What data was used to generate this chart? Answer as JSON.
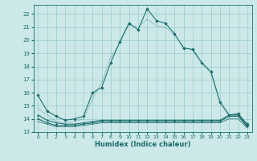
{
  "xlabel": "Humidex (Indice chaleur)",
  "xlim": [
    -0.5,
    23.5
  ],
  "ylim": [
    13,
    22.7
  ],
  "yticks": [
    13,
    14,
    15,
    16,
    17,
    18,
    19,
    20,
    21,
    22
  ],
  "xticks": [
    0,
    1,
    2,
    3,
    4,
    5,
    6,
    7,
    8,
    9,
    10,
    11,
    12,
    13,
    14,
    15,
    16,
    17,
    18,
    19,
    20,
    21,
    22,
    23
  ],
  "bg_color": "#cce8e8",
  "grid_color": "#99cccc",
  "line_color": "#1a6b6b",
  "series_dotted": {
    "x": [
      0,
      1,
      2,
      3,
      4,
      5,
      6,
      7,
      8,
      9,
      10,
      11,
      12,
      13,
      14,
      15,
      16,
      17,
      18,
      19,
      20,
      21,
      22,
      23
    ],
    "y": [
      14.8,
      14.3,
      13.8,
      13.7,
      13.8,
      14.0,
      15.5,
      16.8,
      18.7,
      19.8,
      21.2,
      21.0,
      21.6,
      21.1,
      21.0,
      20.4,
      19.5,
      19.2,
      18.2,
      17.5,
      15.2,
      14.2,
      14.3,
      13.5
    ]
  },
  "series_markers": {
    "x": [
      0,
      1,
      2,
      3,
      4,
      5,
      6,
      7,
      8,
      9,
      10,
      11,
      12,
      13,
      14,
      15,
      16,
      17,
      18,
      19,
      20,
      21,
      22,
      23
    ],
    "y": [
      15.8,
      14.6,
      14.2,
      13.9,
      14.0,
      14.2,
      16.0,
      16.4,
      18.3,
      19.9,
      21.3,
      20.8,
      22.4,
      21.5,
      21.3,
      20.5,
      19.4,
      19.3,
      18.3,
      17.6,
      15.3,
      14.3,
      14.4,
      13.6
    ]
  },
  "series_flat1": {
    "x": [
      0,
      1,
      2,
      3,
      4,
      5,
      6,
      7,
      8,
      9,
      10,
      11,
      12,
      13,
      14,
      15,
      16,
      17,
      18,
      19,
      20,
      21,
      22,
      23
    ],
    "y": [
      14.3,
      13.9,
      13.7,
      13.6,
      13.6,
      13.7,
      13.8,
      13.9,
      13.9,
      13.9,
      13.9,
      13.9,
      13.9,
      13.9,
      13.9,
      13.9,
      13.9,
      13.9,
      13.9,
      13.9,
      13.9,
      14.3,
      14.3,
      13.5
    ]
  },
  "series_flat2": {
    "x": [
      0,
      1,
      2,
      3,
      4,
      5,
      6,
      7,
      8,
      9,
      10,
      11,
      12,
      13,
      14,
      15,
      16,
      17,
      18,
      19,
      20,
      21,
      22,
      23
    ],
    "y": [
      14.0,
      13.7,
      13.5,
      13.5,
      13.5,
      13.6,
      13.7,
      13.8,
      13.8,
      13.8,
      13.8,
      13.8,
      13.8,
      13.8,
      13.8,
      13.8,
      13.8,
      13.8,
      13.8,
      13.8,
      13.8,
      14.2,
      14.2,
      13.4
    ]
  },
  "series_flat3": {
    "x": [
      0,
      1,
      2,
      3,
      4,
      5,
      6,
      7,
      8,
      9,
      10,
      11,
      12,
      13,
      14,
      15,
      16,
      17,
      18,
      19,
      20,
      21,
      22,
      23
    ],
    "y": [
      13.8,
      13.6,
      13.4,
      13.4,
      13.4,
      13.5,
      13.6,
      13.7,
      13.7,
      13.7,
      13.7,
      13.7,
      13.7,
      13.7,
      13.7,
      13.7,
      13.7,
      13.7,
      13.7,
      13.7,
      13.7,
      14.0,
      14.0,
      13.3
    ]
  }
}
